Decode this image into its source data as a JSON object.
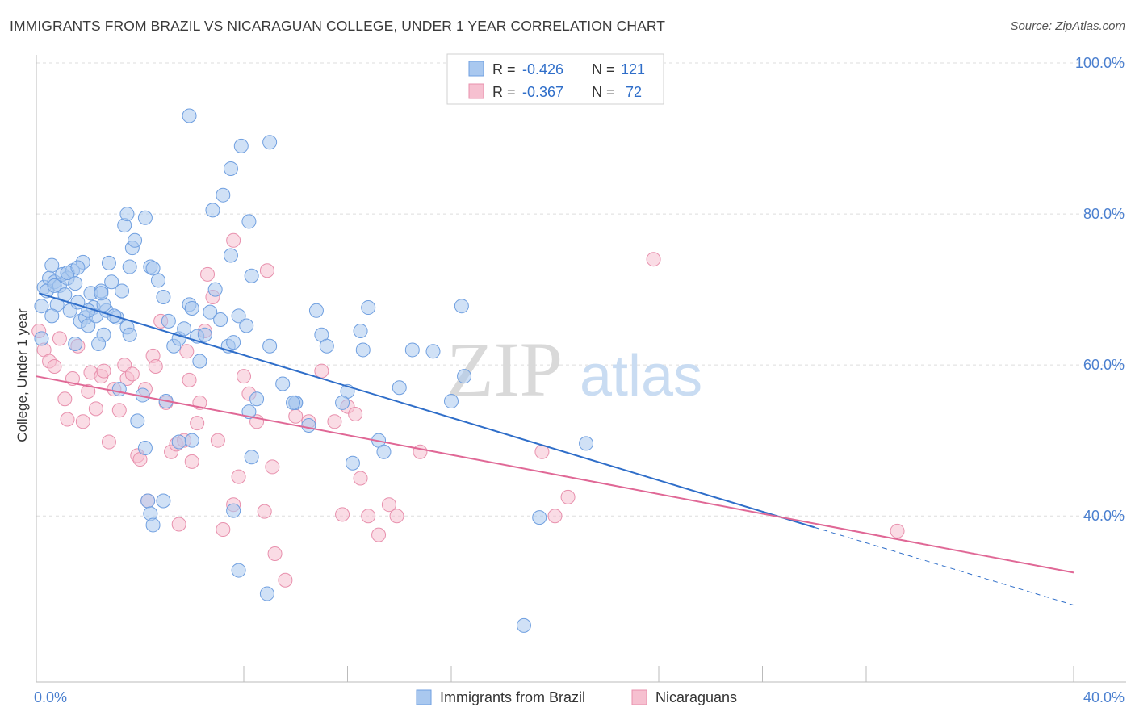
{
  "title": "IMMIGRANTS FROM BRAZIL VS NICARAGUAN COLLEGE, UNDER 1 YEAR CORRELATION CHART",
  "source": "Source: ZipAtlas.com",
  "watermark": {
    "zip": "ZIP",
    "atlas": "atlas"
  },
  "colors": {
    "brazil_fill": "#a9c8ef",
    "brazil_stroke": "#6f9fe0",
    "brazil_line": "#2f6ec9",
    "nicaragua_fill": "#f6c0d0",
    "nicaragua_stroke": "#e890ad",
    "nicaragua_line": "#e06896",
    "tick_text": "#4a7fcf",
    "grid": "#dddddd"
  },
  "legend_top": {
    "rows": [
      {
        "r_label": "R = ",
        "r_value": "-0.426",
        "n_label": "N = ",
        "n_value": "121",
        "series": "brazil"
      },
      {
        "r_label": "R = ",
        "r_value": "-0.367",
        "n_label": "N = ",
        "n_value": "72",
        "series": "nicaragua"
      }
    ]
  },
  "legend_bottom": [
    {
      "label": "Immigrants from Brazil",
      "series": "brazil"
    },
    {
      "label": "Nicaraguans",
      "series": "nicaragua"
    }
  ],
  "chart_data": {
    "type": "scatter",
    "title": "IMMIGRANTS FROM BRAZIL VS NICARAGUAN COLLEGE, UNDER 1 YEAR CORRELATION CHART",
    "xlabel": "",
    "ylabel": "College, Under 1 year",
    "xlim": [
      0,
      40
    ],
    "ylim": [
      18,
      100
    ],
    "x_tick_labels": [
      "0.0%",
      "40.0%"
    ],
    "y_ticks": [
      40,
      60,
      80,
      100
    ],
    "y_tick_labels": [
      "40.0%",
      "60.0%",
      "80.0%",
      "100.0%"
    ],
    "grid": true,
    "legend_position": "top-center",
    "series": [
      {
        "name": "Immigrants from Brazil",
        "key": "brazil",
        "R": -0.426,
        "N": 121,
        "trend": {
          "x0": 0.1,
          "y0": 69.5,
          "x1": 30.0,
          "y1": 38.5,
          "dashed_to_x": 40.0,
          "dashed_to_y": 28.2
        },
        "points": [
          [
            0.3,
            70.3
          ],
          [
            0.2,
            67.8
          ],
          [
            0.5,
            71.5
          ],
          [
            0.4,
            69.8
          ],
          [
            0.6,
            73.2
          ],
          [
            0.7,
            71.0
          ],
          [
            0.8,
            68.0
          ],
          [
            0.9,
            70.5
          ],
          [
            1.0,
            72.0
          ],
          [
            0.6,
            66.5
          ],
          [
            1.1,
            69.3
          ],
          [
            1.2,
            71.5
          ],
          [
            1.3,
            67.2
          ],
          [
            1.4,
            72.5
          ],
          [
            1.5,
            70.8
          ],
          [
            1.6,
            68.3
          ],
          [
            1.7,
            65.8
          ],
          [
            1.8,
            73.6
          ],
          [
            1.9,
            66.3
          ],
          [
            2.0,
            65.2
          ],
          [
            2.1,
            69.5
          ],
          [
            2.2,
            67.6
          ],
          [
            2.3,
            66.5
          ],
          [
            2.5,
            69.8
          ],
          [
            2.6,
            64.0
          ],
          [
            2.7,
            67.2
          ],
          [
            2.8,
            73.5
          ],
          [
            2.9,
            71.0
          ],
          [
            3.1,
            66.3
          ],
          [
            3.3,
            69.8
          ],
          [
            3.5,
            65.0
          ],
          [
            3.6,
            73.0
          ],
          [
            3.7,
            75.5
          ],
          [
            3.8,
            76.5
          ],
          [
            3.4,
            78.5
          ],
          [
            3.5,
            80.0
          ],
          [
            4.2,
            79.5
          ],
          [
            4.4,
            73.0
          ],
          [
            4.5,
            72.8
          ],
          [
            4.7,
            71.2
          ],
          [
            4.9,
            69.0
          ],
          [
            5.1,
            65.8
          ],
          [
            5.3,
            62.5
          ],
          [
            5.5,
            63.5
          ],
          [
            5.7,
            64.8
          ],
          [
            5.9,
            68.0
          ],
          [
            6.0,
            67.5
          ],
          [
            6.2,
            63.8
          ],
          [
            6.5,
            64.0
          ],
          [
            6.7,
            67.0
          ],
          [
            6.9,
            70.0
          ],
          [
            7.1,
            66.0
          ],
          [
            7.4,
            62.5
          ],
          [
            6.3,
            60.5
          ],
          [
            7.6,
            63.0
          ],
          [
            7.8,
            66.5
          ],
          [
            8.1,
            65.2
          ],
          [
            8.3,
            71.8
          ],
          [
            7.5,
            74.5
          ],
          [
            8.2,
            79.0
          ],
          [
            6.8,
            80.5
          ],
          [
            7.2,
            82.5
          ],
          [
            7.5,
            86.0
          ],
          [
            7.9,
            89.0
          ],
          [
            5.9,
            93.0
          ],
          [
            9.0,
            89.5
          ],
          [
            2.4,
            62.8
          ],
          [
            3.2,
            56.8
          ],
          [
            4.1,
            56.0
          ],
          [
            3.9,
            52.6
          ],
          [
            5.0,
            55.2
          ],
          [
            5.5,
            49.8
          ],
          [
            6.0,
            50.0
          ],
          [
            4.2,
            49.0
          ],
          [
            4.9,
            42.0
          ],
          [
            4.3,
            42.0
          ],
          [
            4.4,
            40.3
          ],
          [
            4.5,
            38.8
          ],
          [
            7.6,
            40.7
          ],
          [
            7.8,
            32.8
          ],
          [
            8.3,
            47.8
          ],
          [
            8.2,
            53.8
          ],
          [
            8.5,
            55.5
          ],
          [
            9.0,
            62.5
          ],
          [
            9.5,
            57.5
          ],
          [
            10.0,
            55.0
          ],
          [
            10.5,
            52.0
          ],
          [
            11.0,
            64.0
          ],
          [
            11.2,
            62.5
          ],
          [
            12.0,
            56.5
          ],
          [
            11.8,
            55.0
          ],
          [
            12.2,
            47.0
          ],
          [
            12.5,
            64.5
          ],
          [
            12.6,
            62.0
          ],
          [
            13.2,
            50.0
          ],
          [
            13.4,
            48.5
          ],
          [
            14.0,
            57.0
          ],
          [
            14.5,
            62.0
          ],
          [
            15.3,
            61.8
          ],
          [
            16.0,
            55.2
          ],
          [
            16.5,
            58.5
          ],
          [
            16.4,
            67.8
          ],
          [
            18.8,
            25.5
          ],
          [
            19.4,
            39.8
          ],
          [
            21.2,
            49.6
          ],
          [
            10.8,
            67.2
          ],
          [
            10.0,
            55.0
          ],
          [
            9.9,
            55.0
          ],
          [
            0.2,
            63.5
          ],
          [
            8.9,
            29.7
          ],
          [
            1.5,
            62.8
          ],
          [
            2.6,
            68.0
          ],
          [
            3.0,
            66.5
          ],
          [
            0.7,
            70.5
          ],
          [
            1.2,
            72.2
          ],
          [
            1.6,
            72.9
          ],
          [
            2.0,
            67.2
          ],
          [
            2.5,
            69.5
          ],
          [
            3.6,
            64.0
          ],
          [
            12.8,
            67.6
          ]
        ]
      },
      {
        "name": "Nicaraguans",
        "key": "nicaragua",
        "R": -0.367,
        "N": 72,
        "trend": {
          "x0": 0.0,
          "y0": 58.5,
          "x1": 40.0,
          "y1": 32.5
        },
        "points": [
          [
            0.1,
            64.5
          ],
          [
            0.3,
            62.0
          ],
          [
            0.5,
            60.5
          ],
          [
            0.7,
            59.8
          ],
          [
            0.9,
            63.5
          ],
          [
            1.1,
            55.5
          ],
          [
            1.2,
            52.8
          ],
          [
            1.4,
            58.2
          ],
          [
            1.6,
            62.5
          ],
          [
            1.8,
            52.5
          ],
          [
            2.0,
            56.5
          ],
          [
            2.1,
            59.0
          ],
          [
            2.3,
            54.2
          ],
          [
            2.5,
            58.5
          ],
          [
            2.6,
            59.2
          ],
          [
            2.8,
            49.8
          ],
          [
            3.0,
            56.8
          ],
          [
            3.2,
            54.0
          ],
          [
            3.4,
            60.0
          ],
          [
            3.5,
            58.2
          ],
          [
            3.7,
            58.8
          ],
          [
            3.9,
            48.0
          ],
          [
            4.0,
            47.5
          ],
          [
            4.2,
            56.8
          ],
          [
            4.5,
            61.2
          ],
          [
            4.6,
            59.8
          ],
          [
            4.8,
            65.8
          ],
          [
            5.0,
            55.0
          ],
          [
            5.2,
            48.5
          ],
          [
            5.4,
            49.5
          ],
          [
            5.7,
            50.0
          ],
          [
            5.9,
            58.0
          ],
          [
            6.0,
            47.2
          ],
          [
            6.2,
            52.3
          ],
          [
            6.5,
            64.5
          ],
          [
            6.8,
            69.0
          ],
          [
            7.0,
            50.0
          ],
          [
            7.2,
            38.2
          ],
          [
            7.6,
            41.5
          ],
          [
            7.8,
            45.2
          ],
          [
            8.0,
            58.5
          ],
          [
            8.2,
            56.2
          ],
          [
            8.5,
            52.5
          ],
          [
            8.8,
            40.6
          ],
          [
            8.9,
            72.5
          ],
          [
            9.1,
            46.5
          ],
          [
            9.6,
            31.5
          ],
          [
            10.0,
            53.2
          ],
          [
            10.5,
            52.5
          ],
          [
            11.0,
            59.2
          ],
          [
            11.5,
            52.5
          ],
          [
            11.8,
            40.2
          ],
          [
            12.0,
            54.5
          ],
          [
            12.3,
            53.5
          ],
          [
            12.5,
            45.0
          ],
          [
            12.8,
            40.0
          ],
          [
            13.2,
            37.5
          ],
          [
            13.6,
            41.5
          ],
          [
            13.9,
            40.0
          ],
          [
            14.8,
            48.5
          ],
          [
            19.5,
            48.5
          ],
          [
            20.0,
            40.0
          ],
          [
            20.5,
            42.5
          ],
          [
            23.8,
            74.0
          ],
          [
            33.2,
            38.0
          ],
          [
            6.6,
            72.0
          ],
          [
            7.6,
            76.5
          ],
          [
            5.8,
            61.8
          ],
          [
            6.3,
            55.0
          ],
          [
            4.3,
            42.0
          ],
          [
            5.5,
            38.9
          ],
          [
            9.2,
            35.0
          ]
        ]
      }
    ]
  }
}
